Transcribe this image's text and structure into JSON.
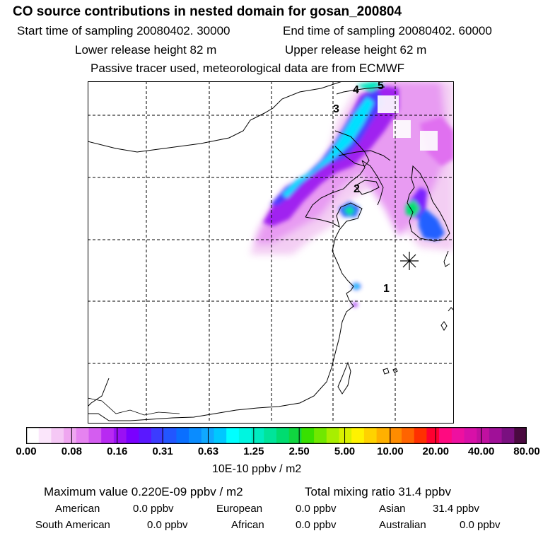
{
  "header": {
    "title": "CO  source contributions in nested domain for gosan_200804",
    "start_time": "Start time of sampling 20080402. 30000",
    "end_time": "End time of sampling 20080402. 60000",
    "lower_release": "Lower release height   82 m",
    "upper_release": "Upper release height   62 m",
    "tracer_info": "Passive tracer used, meteorological data are from ECMWF"
  },
  "map": {
    "labels": [
      "1",
      "2",
      "3",
      "4",
      "5"
    ],
    "receptor_marker": "asterisk-icon"
  },
  "colorbar": {
    "ticks": [
      "0.00",
      "0.08",
      "0.16",
      "0.31",
      "0.63",
      "1.25",
      "2.50",
      "5.00",
      "10.00",
      "20.00",
      "40.00",
      "80.00"
    ],
    "units": "10E-10 ppbv / m2",
    "colors": [
      "#ffffff",
      "#fbe6fb",
      "#f5c8f5",
      "#efa6f0",
      "#e683f0",
      "#d45df0",
      "#b82af2",
      "#9a10f4",
      "#7a00ff",
      "#5a18ff",
      "#3c3cff",
      "#2256ff",
      "#0a6fff",
      "#0a8cff",
      "#10a8ff",
      "#00c8ff",
      "#00ffff",
      "#00f5e0",
      "#00ecc0",
      "#00e49a",
      "#00dc70",
      "#10d640",
      "#38e000",
      "#70e800",
      "#a8ee00",
      "#d8f000",
      "#fff200",
      "#ffd200",
      "#ffb000",
      "#ff8c00",
      "#ff6400",
      "#ff3000",
      "#ff0030",
      "#ff0a80",
      "#ee10a0",
      "#d810a8",
      "#c010a0",
      "#a01098",
      "#7a1080",
      "#4a0a40"
    ]
  },
  "summary": {
    "maximum": "Maximum value  0.220E-09 ppbv / m2",
    "total": "Total mixing ratio       31.4 ppbv",
    "regions": [
      {
        "name": "American",
        "value": "0.0 ppbv"
      },
      {
        "name": "European",
        "value": "0.0 ppbv"
      },
      {
        "name": "Asian",
        "value": "31.4 ppbv"
      },
      {
        "name": "South American",
        "value": "0.0 ppbv"
      },
      {
        "name": "African",
        "value": "0.0 ppbv"
      },
      {
        "name": "Australian",
        "value": "0.0 ppbv"
      }
    ]
  }
}
